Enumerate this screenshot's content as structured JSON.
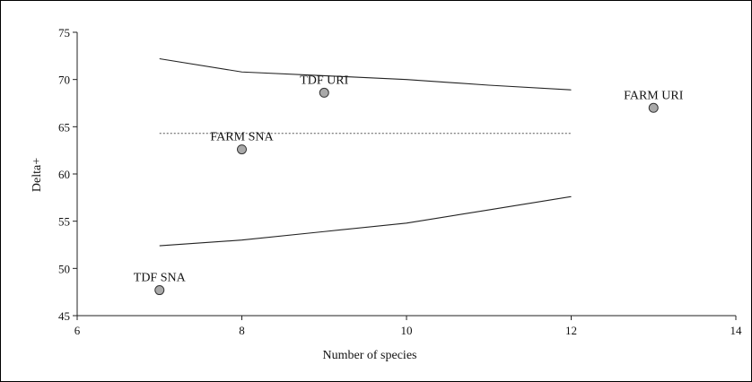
{
  "chart_data": {
    "type": "scatter",
    "xlabel": "Number of species",
    "ylabel": "Delta+",
    "xlim": [
      6,
      14
    ],
    "ylim": [
      45,
      75
    ],
    "x_ticks": [
      6,
      8,
      10,
      12,
      14
    ],
    "y_ticks": [
      45,
      50,
      55,
      60,
      65,
      70,
      75
    ],
    "grid": false,
    "points": [
      {
        "label": "TDF SNA",
        "x": 7,
        "y": 47.7
      },
      {
        "label": "FARM SNA",
        "x": 8,
        "y": 62.6
      },
      {
        "label": "TDF URI",
        "x": 9,
        "y": 68.6
      },
      {
        "label": "FARM URI",
        "x": 13,
        "y": 67.0
      }
    ],
    "upper_limit": {
      "x": [
        7,
        8,
        9,
        10,
        11,
        12
      ],
      "y": [
        72.2,
        70.8,
        70.4,
        70.0,
        69.4,
        68.9
      ]
    },
    "lower_limit": {
      "x": [
        7,
        8,
        9,
        10,
        11,
        12
      ],
      "y": [
        52.4,
        53.0,
        53.9,
        54.8,
        56.2,
        57.6
      ]
    },
    "mean_line": {
      "x": [
        7,
        12
      ],
      "y": 64.3
    },
    "colors": {
      "point_fill": "#a9a9a9",
      "point_stroke": "#333333",
      "line": "#222222"
    }
  }
}
